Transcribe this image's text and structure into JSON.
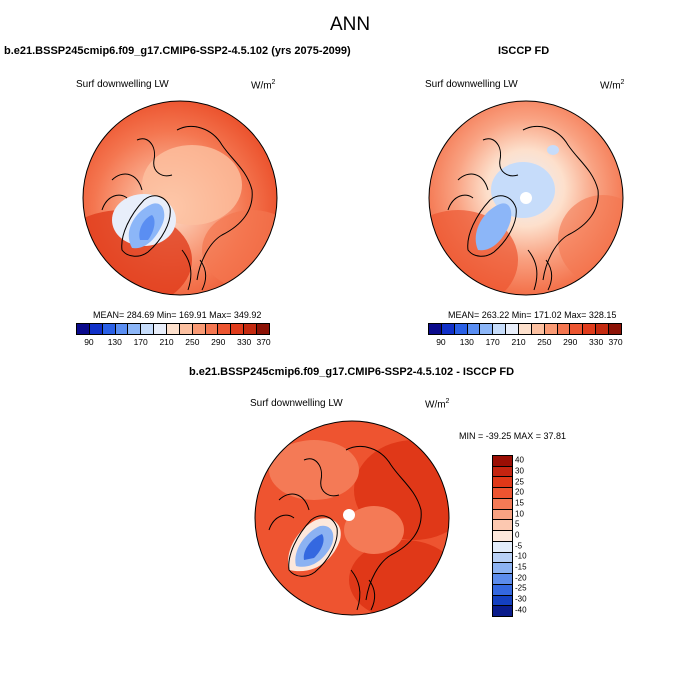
{
  "header": {
    "title": "ANN"
  },
  "panels": [
    {
      "title": "b.e21.BSSP245cmip6.f09_g17.CMIP6-SSP2-4.5.102 (yrs 2075-2099)",
      "variable": "Surf downwelling LW",
      "unit_base": "W/m",
      "unit_exp": "2",
      "stats": "MEAN= 284.69  Min= 169.91  Max= 349.92",
      "colorbar_ticks": [
        "90",
        "130",
        "170",
        "210",
        "250",
        "290",
        "330",
        "370"
      ]
    },
    {
      "title": "ISCCP FD",
      "variable": "Surf downwelling LW",
      "unit_base": "W/m",
      "unit_exp": "2",
      "stats": "MEAN= 263.22  Min= 171.02  Max= 328.15",
      "colorbar_ticks": [
        "90",
        "130",
        "170",
        "210",
        "250",
        "290",
        "330",
        "370"
      ]
    },
    {
      "title": "b.e21.BSSP245cmip6.f09_g17.CMIP6-SSP2-4.5.102 - ISCCP FD",
      "variable": "Surf downwelling LW",
      "unit_base": "W/m",
      "unit_exp": "2",
      "stats": "MIN = -39.25 MAX =  37.81",
      "colorbar_ticks": [
        "40",
        "30",
        "25",
        "20",
        "15",
        "10",
        "5",
        "0",
        "-5",
        "-10",
        "-15",
        "-20",
        "-25",
        "-30",
        "-40"
      ]
    }
  ],
  "colors": {
    "abs_scale": [
      "#0a0a8c",
      "#1030c8",
      "#2a60e6",
      "#5a8ef2",
      "#8cb6f8",
      "#c6dcfa",
      "#e8eefa",
      "#fde0cc",
      "#fcc0a0",
      "#f99a74",
      "#f47650",
      "#ec5530",
      "#e03c1c",
      "#c42a10",
      "#8c1206"
    ],
    "diff_scale": [
      "#9a0e04",
      "#c42410",
      "#e03818",
      "#ee5430",
      "#f47a56",
      "#f9a282",
      "#fcc8b0",
      "#fde8dc",
      "#e2ecfa",
      "#b8d0f6",
      "#8cb2f2",
      "#5c8cec",
      "#3468e0",
      "#1440c0",
      "#0a1c8c"
    ],
    "land_outline": "#000000"
  }
}
